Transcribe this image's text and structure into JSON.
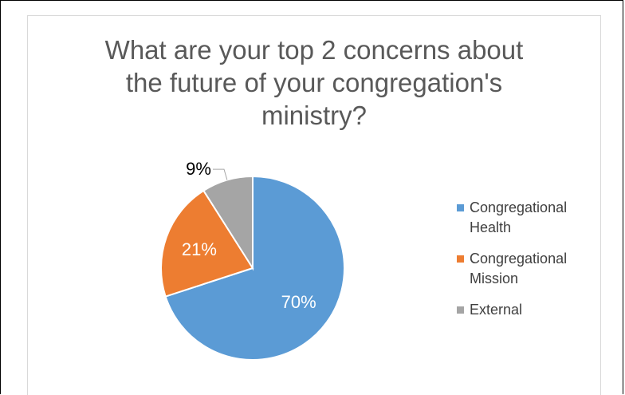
{
  "chart_data": {
    "type": "pie",
    "title_lines": [
      "What are your top 2 concerns about",
      "the future of your congregation's",
      "ministry?"
    ],
    "title": "What are your top 2 concerns about the future of your congregation's ministry?",
    "slices": [
      {
        "label": "Congregational Health",
        "label_lines": [
          "Congregational",
          "Health"
        ],
        "value": 70,
        "display": "70%",
        "color": "#5b9bd5",
        "label_color": "#ffffff"
      },
      {
        "label": "Congregational Mission",
        "label_lines": [
          "Congregational",
          "Mission"
        ],
        "value": 21,
        "display": "21%",
        "color": "#ed7d31",
        "label_color": "#ffffff"
      },
      {
        "label": "External",
        "label_lines": [
          "External"
        ],
        "value": 9,
        "display": "9%",
        "color": "#a5a5a5",
        "label_color": "#000000"
      }
    ],
    "legend_position": "right"
  }
}
